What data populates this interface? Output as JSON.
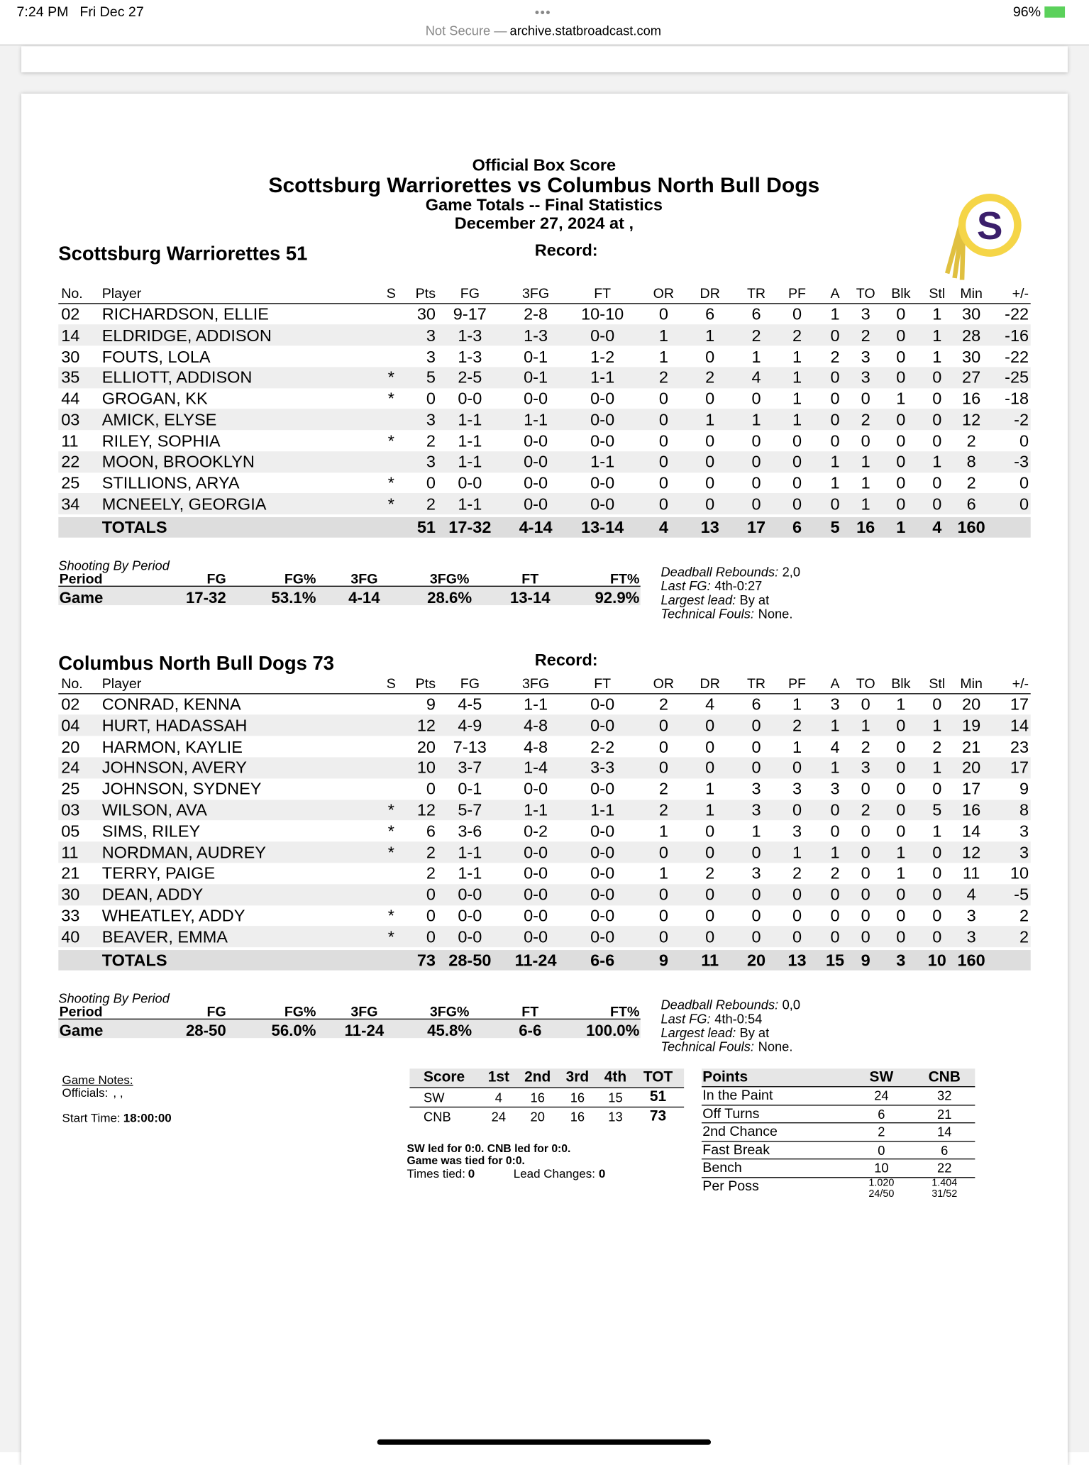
{
  "status_bar": {
    "time": "7:24 PM",
    "date": "Fri Dec 27",
    "url_prefix": "Not Secure —",
    "url": "archive.statbroadcast.com",
    "battery": "96%"
  },
  "header": {
    "title": "Official Box Score",
    "matchup": "Scottsburg Warriorettes vs Columbus North Bull Dogs",
    "subtitle": "Game Totals -- Final Statistics",
    "date": "December 27, 2024 at ,",
    "logo_letter": "S"
  },
  "columns": [
    "No.",
    "Player",
    "S",
    "Pts",
    "FG",
    "3FG",
    "FT",
    "OR",
    "DR",
    "TR",
    "PF",
    "A",
    "TO",
    "Blk",
    "Stl",
    "Min",
    "+/-"
  ],
  "teams": [
    {
      "name_score": "Scottsburg Warriorettes 51",
      "record_label": "Record:",
      "players": [
        [
          "02",
          "RICHARDSON, ELLIE",
          null,
          "30",
          "9-17",
          "2-8",
          "10-10",
          "0",
          "6",
          "6",
          "0",
          "1",
          "3",
          "0",
          "1",
          "30",
          "-22"
        ],
        [
          "14",
          "ELDRIDGE, ADDISON",
          null,
          "3",
          "1-3",
          "1-3",
          "0-0",
          "1",
          "1",
          "2",
          "2",
          "0",
          "2",
          "0",
          "1",
          "28",
          "-16"
        ],
        [
          "30",
          "FOUTS, LOLA",
          null,
          "3",
          "1-3",
          "0-1",
          "1-2",
          "1",
          "0",
          "1",
          "1",
          "2",
          "3",
          "0",
          "1",
          "30",
          "-22"
        ],
        [
          "35",
          "ELLIOTT, ADDISON",
          "*",
          "5",
          "2-5",
          "0-1",
          "1-1",
          "2",
          "2",
          "4",
          "1",
          "0",
          "3",
          "0",
          "0",
          "27",
          "-25"
        ],
        [
          "44",
          "GROGAN, KK",
          "*",
          "0",
          "0-0",
          "0-0",
          "0-0",
          "0",
          "0",
          "0",
          "1",
          "0",
          "0",
          "1",
          "0",
          "16",
          "-18"
        ],
        [
          "03",
          "AMICK, ELYSE",
          null,
          "3",
          "1-1",
          "1-1",
          "0-0",
          "0",
          "1",
          "1",
          "1",
          "0",
          "2",
          "0",
          "0",
          "12",
          "-2"
        ],
        [
          "11",
          "RILEY, SOPHIA",
          "*",
          "2",
          "1-1",
          "0-0",
          "0-0",
          "0",
          "0",
          "0",
          "0",
          "0",
          "0",
          "0",
          "0",
          "2",
          "0"
        ],
        [
          "22",
          "MOON, BROOKLYN",
          null,
          "3",
          "1-1",
          "0-0",
          "1-1",
          "0",
          "0",
          "0",
          "0",
          "1",
          "1",
          "0",
          "1",
          "8",
          "-3"
        ],
        [
          "25",
          "STILLIONS, ARYA",
          "*",
          "0",
          "0-0",
          "0-0",
          "0-0",
          "0",
          "0",
          "0",
          "0",
          "1",
          "1",
          "0",
          "0",
          "2",
          "0"
        ],
        [
          "34",
          "MCNEELY, GEORGIA",
          "*",
          "2",
          "1-1",
          "0-0",
          "0-0",
          "0",
          "0",
          "0",
          "0",
          "0",
          "1",
          "0",
          "0",
          "6",
          "0"
        ]
      ],
      "totals": [
        null,
        "TOTALS",
        null,
        "51",
        "17-32",
        "4-14",
        "13-14",
        "4",
        "13",
        "17",
        "6",
        "5",
        "16",
        "1",
        "4",
        "160",
        null
      ],
      "shooting": {
        "title": "Shooting By Period",
        "columns": [
          "Period",
          "FG",
          "FG%",
          "3FG",
          "3FG%",
          "FT",
          "FT%"
        ],
        "row": [
          "Game",
          "17-32",
          "53.1%",
          "4-14",
          "28.6%",
          "13-14",
          "92.9%"
        ]
      },
      "notes": [
        {
          "label": "Deadball Rebounds:",
          "value": "2,0"
        },
        {
          "label": "Last FG:",
          "value": "4th-0:27"
        },
        {
          "label": "Largest lead:",
          "value": "By at"
        },
        {
          "label": "Technical Fouls:",
          "value": "None."
        }
      ]
    },
    {
      "name_score": "Columbus North Bull Dogs 73",
      "record_label": "Record:",
      "players": [
        [
          "02",
          "CONRAD, KENNA",
          null,
          "9",
          "4-5",
          "1-1",
          "0-0",
          "2",
          "4",
          "6",
          "1",
          "3",
          "0",
          "1",
          "0",
          "20",
          "17"
        ],
        [
          "04",
          "HURT, HADASSAH",
          null,
          "12",
          "4-9",
          "4-8",
          "0-0",
          "0",
          "0",
          "0",
          "2",
          "1",
          "1",
          "0",
          "1",
          "19",
          "14"
        ],
        [
          "20",
          "HARMON, KAYLIE",
          null,
          "20",
          "7-13",
          "4-8",
          "2-2",
          "0",
          "0",
          "0",
          "1",
          "4",
          "2",
          "0",
          "2",
          "21",
          "23"
        ],
        [
          "24",
          "JOHNSON, AVERY",
          null,
          "10",
          "3-7",
          "1-4",
          "3-3",
          "0",
          "0",
          "0",
          "0",
          "1",
          "3",
          "0",
          "1",
          "20",
          "17"
        ],
        [
          "25",
          "JOHNSON, SYDNEY",
          null,
          "0",
          "0-1",
          "0-0",
          "0-0",
          "2",
          "1",
          "3",
          "3",
          "3",
          "0",
          "0",
          "0",
          "17",
          "9"
        ],
        [
          "03",
          "WILSON, AVA",
          "*",
          "12",
          "5-7",
          "1-1",
          "1-1",
          "2",
          "1",
          "3",
          "0",
          "0",
          "2",
          "0",
          "5",
          "16",
          "8"
        ],
        [
          "05",
          "SIMS, RILEY",
          "*",
          "6",
          "3-6",
          "0-2",
          "0-0",
          "1",
          "0",
          "1",
          "3",
          "0",
          "0",
          "0",
          "1",
          "14",
          "3"
        ],
        [
          "11",
          "NORDMAN, AUDREY",
          "*",
          "2",
          "1-1",
          "0-0",
          "0-0",
          "0",
          "0",
          "0",
          "1",
          "1",
          "0",
          "1",
          "0",
          "12",
          "3"
        ],
        [
          "21",
          "TERRY, PAIGE",
          null,
          "2",
          "1-1",
          "0-0",
          "0-0",
          "1",
          "2",
          "3",
          "2",
          "2",
          "0",
          "1",
          "0",
          "11",
          "10"
        ],
        [
          "30",
          "DEAN, ADDY",
          null,
          "0",
          "0-0",
          "0-0",
          "0-0",
          "0",
          "0",
          "0",
          "0",
          "0",
          "0",
          "0",
          "0",
          "4",
          "-5"
        ],
        [
          "33",
          "WHEATLEY, ADDY",
          "*",
          "0",
          "0-0",
          "0-0",
          "0-0",
          "0",
          "0",
          "0",
          "0",
          "0",
          "0",
          "0",
          "0",
          "3",
          "2"
        ],
        [
          "40",
          "BEAVER, EMMA",
          "*",
          "0",
          "0-0",
          "0-0",
          "0-0",
          "0",
          "0",
          "0",
          "0",
          "0",
          "0",
          "0",
          "0",
          "3",
          "2"
        ]
      ],
      "totals": [
        null,
        "TOTALS",
        null,
        "73",
        "28-50",
        "11-24",
        "6-6",
        "9",
        "11",
        "20",
        "13",
        "15",
        "9",
        "3",
        "10",
        "160",
        null
      ],
      "shooting": {
        "title": "Shooting By Period",
        "columns": [
          "Period",
          "FG",
          "FG%",
          "3FG",
          "3FG%",
          "FT",
          "FT%"
        ],
        "row": [
          "Game",
          "28-50",
          "56.0%",
          "11-24",
          "45.8%",
          "6-6",
          "100.0%"
        ]
      },
      "notes": [
        {
          "label": "Deadball Rebounds:",
          "value": "0,0"
        },
        {
          "label": "Last FG:",
          "value": "4th-0:54"
        },
        {
          "label": "Largest lead:",
          "value": "By at"
        },
        {
          "label": "Technical Fouls:",
          "value": "None."
        }
      ]
    }
  ],
  "game_notes": {
    "title": "Game Notes:",
    "officials_label": "Officials:",
    "officials_value": ", ,",
    "start_label": "Start Time:",
    "start_value": "18:00:00"
  },
  "score_table": {
    "columns": [
      "Score",
      "1st",
      "2nd",
      "3rd",
      "4th",
      "TOT"
    ],
    "rows": [
      [
        "SW",
        "4",
        "16",
        "16",
        "15",
        "51"
      ],
      [
        "CNB",
        "24",
        "20",
        "16",
        "13",
        "73"
      ]
    ]
  },
  "lead_notes": {
    "lines": [
      "SW led for 0:0. CNB led for 0:0.",
      "Game was tied for 0:0."
    ],
    "times_tied_label": "Times tied:",
    "times_tied": "0",
    "lead_changes_label": "Lead Changes:",
    "lead_changes": "0"
  },
  "points_table": {
    "columns": [
      "Points",
      "SW",
      "CNB"
    ],
    "rows": [
      [
        "In the Paint",
        "24",
        "32"
      ],
      [
        "Off Turns",
        "6",
        "21"
      ],
      [
        "2nd Chance",
        "2",
        "14"
      ],
      [
        "Fast Break",
        "0",
        "6"
      ],
      [
        "Bench",
        "10",
        "22"
      ],
      [
        "Per Poss",
        [
          "1.020",
          "24/50"
        ],
        [
          "1.404",
          "31/52"
        ]
      ]
    ]
  }
}
